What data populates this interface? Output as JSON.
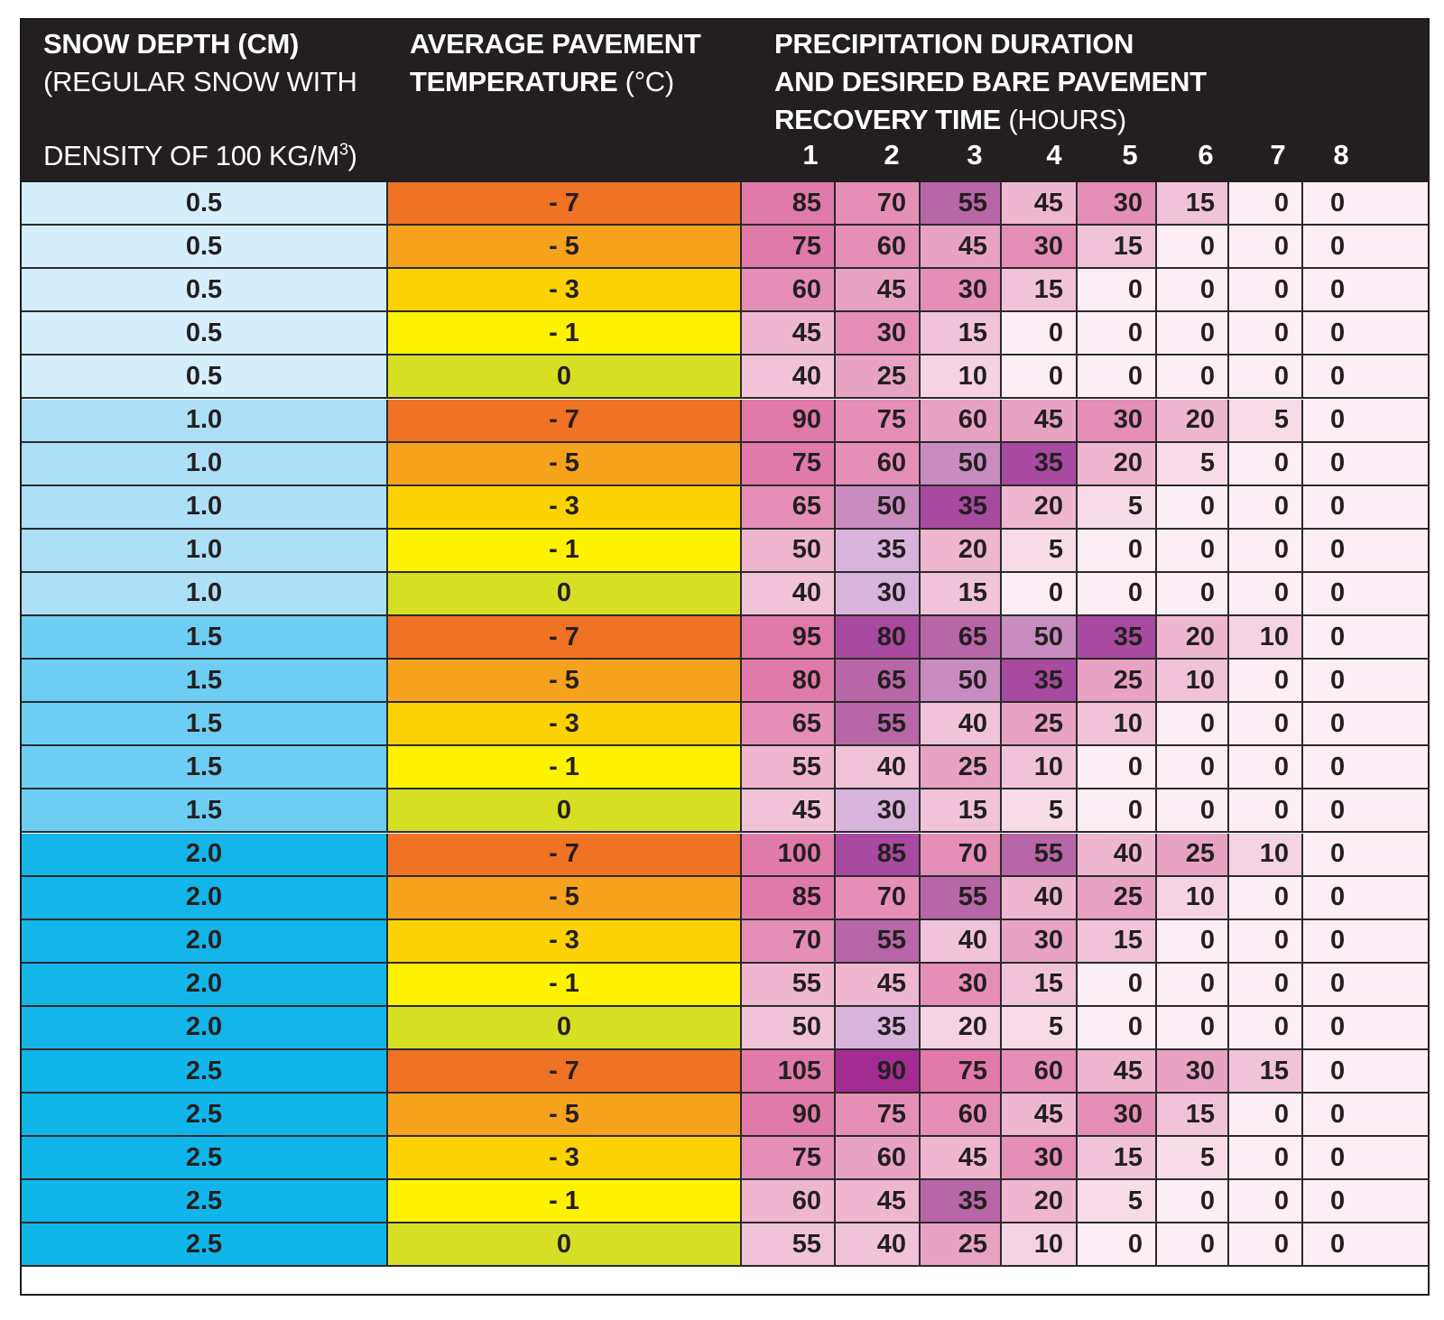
{
  "header": {
    "depth_title": "SNOW DEPTH (CM)",
    "depth_sub1": "(REGULAR SNOW WITH",
    "depth_sub2": "DENSITY OF 100 KG/M",
    "depth_sup": "3",
    "depth_close": ")",
    "temp_title1": "AVERAGE PAVEMENT",
    "temp_title2": "TEMPERATURE",
    "temp_unit": " (°C)",
    "precip_title1": "PRECIPITATION DURATION",
    "precip_title2": "AND DESIRED BARE PAVEMENT",
    "precip_title3": "RECOVERY TIME",
    "precip_unit": " (HOURS)",
    "hours": [
      "1",
      "2",
      "3",
      "4",
      "5",
      "6",
      "7",
      "8"
    ]
  },
  "colors": {
    "depth": {
      "0.5": "#d4effb",
      "1.0": "#addff7",
      "1.5": "#6dcdf3",
      "2.0": "#14b5e8",
      "2.5": "#10b6ea"
    },
    "temp": {
      "- 7": "#f07224",
      "- 5": "#f7a21c",
      "- 3": "#fdd204",
      "- 1": "#fff200",
      "0": "#d6df24"
    }
  },
  "rows": [
    {
      "depth": "0.5",
      "temp": "- 7",
      "values": [
        "85",
        "70",
        "55",
        "45",
        "30",
        "15",
        "0",
        "0"
      ]
    },
    {
      "depth": "0.5",
      "temp": "- 5",
      "values": [
        "75",
        "60",
        "45",
        "30",
        "15",
        "0",
        "0",
        "0"
      ]
    },
    {
      "depth": "0.5",
      "temp": "- 3",
      "values": [
        "60",
        "45",
        "30",
        "15",
        "0",
        "0",
        "0",
        "0"
      ]
    },
    {
      "depth": "0.5",
      "temp": "- 1",
      "values": [
        "45",
        "30",
        "15",
        "0",
        "0",
        "0",
        "0",
        "0"
      ]
    },
    {
      "depth": "0.5",
      "temp": "0",
      "values": [
        "40",
        "25",
        "10",
        "0",
        "0",
        "0",
        "0",
        "0"
      ]
    },
    {
      "depth": "1.0",
      "temp": "- 7",
      "values": [
        "90",
        "75",
        "60",
        "45",
        "30",
        "20",
        "5",
        "0"
      ]
    },
    {
      "depth": "1.0",
      "temp": "- 5",
      "values": [
        "75",
        "60",
        "50",
        "35",
        "20",
        "5",
        "0",
        "0"
      ]
    },
    {
      "depth": "1.0",
      "temp": "- 3",
      "values": [
        "65",
        "50",
        "35",
        "20",
        "5",
        "0",
        "0",
        "0"
      ]
    },
    {
      "depth": "1.0",
      "temp": "- 1",
      "values": [
        "50",
        "35",
        "20",
        "5",
        "0",
        "0",
        "0",
        "0"
      ]
    },
    {
      "depth": "1.0",
      "temp": "0",
      "values": [
        "40",
        "30",
        "15",
        "0",
        "0",
        "0",
        "0",
        "0"
      ]
    },
    {
      "depth": "1.5",
      "temp": "- 7",
      "values": [
        "95",
        "80",
        "65",
        "50",
        "35",
        "20",
        "10",
        "0"
      ]
    },
    {
      "depth": "1.5",
      "temp": "- 5",
      "values": [
        "80",
        "65",
        "50",
        "35",
        "25",
        "10",
        "0",
        "0"
      ]
    },
    {
      "depth": "1.5",
      "temp": "- 3",
      "values": [
        "65",
        "55",
        "40",
        "25",
        "10",
        "0",
        "0",
        "0"
      ]
    },
    {
      "depth": "1.5",
      "temp": "- 1",
      "values": [
        "55",
        "40",
        "25",
        "10",
        "0",
        "0",
        "0",
        "0"
      ]
    },
    {
      "depth": "1.5",
      "temp": "0",
      "values": [
        "45",
        "30",
        "15",
        "5",
        "0",
        "0",
        "0",
        "0"
      ]
    },
    {
      "depth": "2.0",
      "temp": "- 7",
      "values": [
        "100",
        "85",
        "70",
        "55",
        "40",
        "25",
        "10",
        "0"
      ]
    },
    {
      "depth": "2.0",
      "temp": "- 5",
      "values": [
        "85",
        "70",
        "55",
        "40",
        "25",
        "10",
        "0",
        "0"
      ]
    },
    {
      "depth": "2.0",
      "temp": "- 3",
      "values": [
        "70",
        "55",
        "40",
        "30",
        "15",
        "0",
        "0",
        "0"
      ]
    },
    {
      "depth": "2.0",
      "temp": "- 1",
      "values": [
        "55",
        "45",
        "30",
        "15",
        "0",
        "0",
        "0",
        "0"
      ]
    },
    {
      "depth": "2.0",
      "temp": "0",
      "values": [
        "50",
        "35",
        "20",
        "5",
        "0",
        "0",
        "0",
        "0"
      ]
    },
    {
      "depth": "2.5",
      "temp": "- 7",
      "values": [
        "105",
        "90",
        "75",
        "60",
        "45",
        "30",
        "15",
        "0"
      ]
    },
    {
      "depth": "2.5",
      "temp": "- 5",
      "values": [
        "90",
        "75",
        "60",
        "45",
        "30",
        "15",
        "0",
        "0"
      ]
    },
    {
      "depth": "2.5",
      "temp": "- 3",
      "values": [
        "75",
        "60",
        "45",
        "30",
        "15",
        "5",
        "0",
        "0"
      ]
    },
    {
      "depth": "2.5",
      "temp": "- 1",
      "values": [
        "60",
        "45",
        "35",
        "20",
        "5",
        "0",
        "0",
        "0"
      ]
    },
    {
      "depth": "2.5",
      "temp": "0",
      "values": [
        "55",
        "40",
        "25",
        "10",
        "0",
        "0",
        "0",
        "0"
      ]
    }
  ],
  "cell_colors": [
    [
      "#e07aa8",
      "#e58fb7",
      "#b766a8",
      "#efb6cf",
      "#e58fb7",
      "#f1c3d8",
      "#fbeef4",
      "#fbeef4"
    ],
    [
      "#e07aa8",
      "#e58fb7",
      "#e8a3c3",
      "#e58fb7",
      "#f1c3d8",
      "#fbeef4",
      "#fbeef4",
      "#fbeef4"
    ],
    [
      "#e58fb7",
      "#e8a3c3",
      "#e58fb7",
      "#f1c3d8",
      "#fbeef4",
      "#fbeef4",
      "#fbeef4",
      "#fbeef4"
    ],
    [
      "#efb6cf",
      "#e58fb7",
      "#f1c3d8",
      "#fbeef4",
      "#fbeef4",
      "#fbeef4",
      "#fbeef4",
      "#fbeef4"
    ],
    [
      "#f1c3d8",
      "#e8a3c3",
      "#f5d3e3",
      "#fbeef4",
      "#fbeef4",
      "#fbeef4",
      "#fbeef4",
      "#fbeef4"
    ],
    [
      "#e07aa8",
      "#e58fb7",
      "#e8a3c3",
      "#e8a3c3",
      "#e58fb7",
      "#efb6cf",
      "#f7dce8",
      "#fbeef4"
    ],
    [
      "#e07aa8",
      "#e58fb7",
      "#c88cc0",
      "#a84aa0",
      "#efb6cf",
      "#f7dce8",
      "#fbeef4",
      "#fbeef4"
    ],
    [
      "#e58fb7",
      "#c88cc0",
      "#a84aa0",
      "#efb6cf",
      "#f7dce8",
      "#fbeef4",
      "#fbeef4",
      "#fbeef4"
    ],
    [
      "#efb6cf",
      "#d8b4dc",
      "#efb6cf",
      "#f7dce8",
      "#fbeef4",
      "#fbeef4",
      "#fbeef4",
      "#fbeef4"
    ],
    [
      "#f1c3d8",
      "#d8b4dc",
      "#f1c3d8",
      "#fbeef4",
      "#fbeef4",
      "#fbeef4",
      "#fbeef4",
      "#fbeef4"
    ],
    [
      "#e07aa8",
      "#a84aa0",
      "#b766a8",
      "#c88cc0",
      "#a84aa0",
      "#efb6cf",
      "#f5d3e3",
      "#fbeef4"
    ],
    [
      "#e07aa8",
      "#b766a8",
      "#c88cc0",
      "#a84aa0",
      "#e8a3c3",
      "#f1c3d8",
      "#fbeef4",
      "#fbeef4"
    ],
    [
      "#e58fb7",
      "#b766a8",
      "#f1c3d8",
      "#e8a3c3",
      "#f1c3d8",
      "#fbeef4",
      "#fbeef4",
      "#fbeef4"
    ],
    [
      "#efb6cf",
      "#f1c3d8",
      "#e8a3c3",
      "#f1c3d8",
      "#fbeef4",
      "#fbeef4",
      "#fbeef4",
      "#fbeef4"
    ],
    [
      "#f1c3d8",
      "#d8b4dc",
      "#f1c3d8",
      "#f7dce8",
      "#fbeef4",
      "#fbeef4",
      "#fbeef4",
      "#fbeef4"
    ],
    [
      "#e07aa8",
      "#a84aa0",
      "#e58fb7",
      "#b766a8",
      "#efb6cf",
      "#e8a3c3",
      "#f5d3e3",
      "#fbeef4"
    ],
    [
      "#e07aa8",
      "#e58fb7",
      "#b766a8",
      "#efb6cf",
      "#e8a3c3",
      "#f5d3e3",
      "#fbeef4",
      "#fbeef4"
    ],
    [
      "#e58fb7",
      "#b766a8",
      "#f1c3d8",
      "#e8a3c3",
      "#f1c3d8",
      "#fbeef4",
      "#fbeef4",
      "#fbeef4"
    ],
    [
      "#efb6cf",
      "#efb6cf",
      "#e58fb7",
      "#f1c3d8",
      "#fbeef4",
      "#fbeef4",
      "#fbeef4",
      "#fbeef4"
    ],
    [
      "#f1c3d8",
      "#d8b4dc",
      "#f5d3e3",
      "#f7dce8",
      "#fbeef4",
      "#fbeef4",
      "#fbeef4",
      "#fbeef4"
    ],
    [
      "#e07aa8",
      "#a32c93",
      "#e07aa8",
      "#e58fb7",
      "#efb6cf",
      "#e8a3c3",
      "#f1c3d8",
      "#fbeef4"
    ],
    [
      "#e07aa8",
      "#e58fb7",
      "#e58fb7",
      "#efb6cf",
      "#e58fb7",
      "#f1c3d8",
      "#fbeef4",
      "#fbeef4"
    ],
    [
      "#e58fb7",
      "#e8a3c3",
      "#efb6cf",
      "#e58fb7",
      "#f1c3d8",
      "#f7dce8",
      "#fbeef4",
      "#fbeef4"
    ],
    [
      "#efb6cf",
      "#efb6cf",
      "#b766a8",
      "#efb6cf",
      "#f7dce8",
      "#fbeef4",
      "#fbeef4",
      "#fbeef4"
    ],
    [
      "#f1c3d8",
      "#f1c3d8",
      "#e8a3c3",
      "#f5d3e3",
      "#fbeef4",
      "#fbeef4",
      "#fbeef4",
      "#fbeef4"
    ]
  ]
}
